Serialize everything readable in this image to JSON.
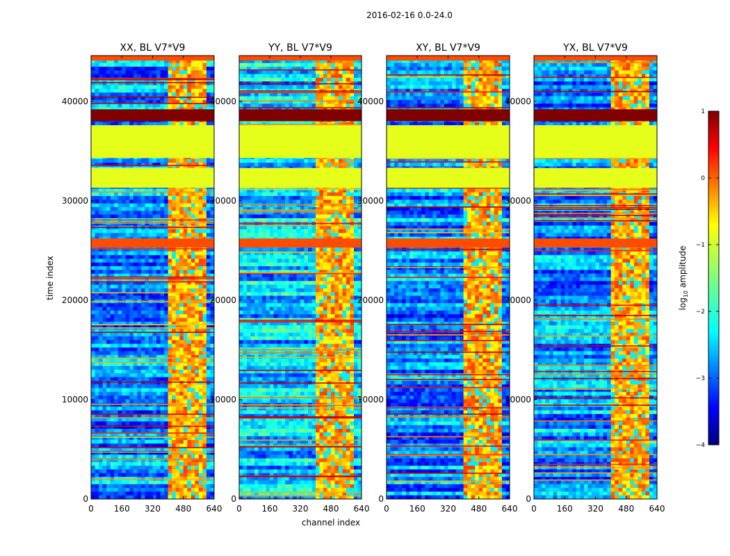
{
  "figure": {
    "suptitle": "2016-02-16 0.0-24.0"
  },
  "chart_data": {
    "type": "heatmap",
    "xlabel": "channel index",
    "ylabel": "time index",
    "x_ticks": [
      "0",
      "160",
      "320",
      "480",
      "640"
    ],
    "x_tick_values": [
      0,
      160,
      320,
      480,
      640
    ],
    "xlim": [
      0,
      640
    ],
    "y_ticks": [
      "0",
      "10000",
      "20000",
      "30000",
      "40000"
    ],
    "y_tick_values": [
      0,
      10000,
      20000,
      30000,
      40000
    ],
    "ylim": [
      0,
      44600
    ],
    "panels": [
      {
        "title": "XX, BL V7*V9",
        "variant": 0
      },
      {
        "title": "YY, BL V7*V9",
        "variant": 1
      },
      {
        "title": "XY, BL V7*V9",
        "variant": 2
      },
      {
        "title": "YX, BL V7*V9",
        "variant": 3
      }
    ],
    "flagged_time_ranges": [
      {
        "start": 31300,
        "end": 33300,
        "value": -1.0
      },
      {
        "start": 34300,
        "end": 37600,
        "value": -1.0
      },
      {
        "start": 38000,
        "end": 39200,
        "value": 1.0
      },
      {
        "start": 25300,
        "end": 26200,
        "value": 0.0
      },
      {
        "start": 44100,
        "end": 44600,
        "value": 0.0
      }
    ],
    "rfi_channel_band": [
      400,
      590
    ],
    "colorbar": {
      "label_prefix": "log",
      "label_sub": "10",
      "label_suffix": " amplitude",
      "min": -4,
      "max": 1,
      "ticks": [
        "1",
        "0",
        "−1",
        "−2",
        "−3",
        "−4"
      ],
      "tick_values": [
        1,
        0,
        -1,
        -2,
        -3,
        -4
      ],
      "colormap": "jet"
    }
  }
}
